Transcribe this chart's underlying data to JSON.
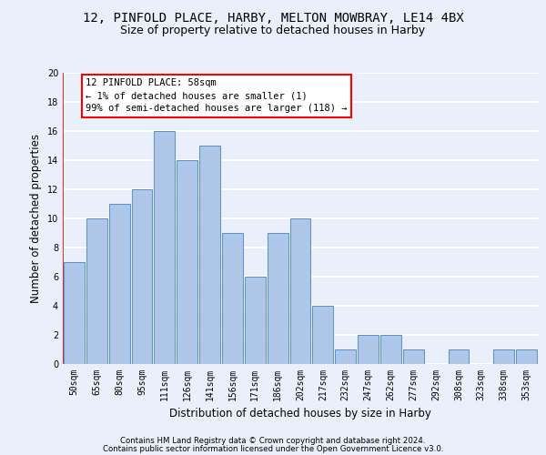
{
  "title_line1": "12, PINFOLD PLACE, HARBY, MELTON MOWBRAY, LE14 4BX",
  "title_line2": "Size of property relative to detached houses in Harby",
  "xlabel": "Distribution of detached houses by size in Harby",
  "ylabel": "Number of detached properties",
  "footnote1": "Contains HM Land Registry data © Crown copyright and database right 2024.",
  "footnote2": "Contains public sector information licensed under the Open Government Licence v3.0.",
  "bar_labels": [
    "50sqm",
    "65sqm",
    "80sqm",
    "95sqm",
    "111sqm",
    "126sqm",
    "141sqm",
    "156sqm",
    "171sqm",
    "186sqm",
    "202sqm",
    "217sqm",
    "232sqm",
    "247sqm",
    "262sqm",
    "277sqm",
    "292sqm",
    "308sqm",
    "323sqm",
    "338sqm",
    "353sqm"
  ],
  "bar_values": [
    7,
    10,
    11,
    12,
    16,
    14,
    15,
    9,
    6,
    9,
    10,
    4,
    1,
    2,
    2,
    1,
    0,
    1,
    0,
    1,
    1
  ],
  "bar_color": "#aec6e8",
  "bar_edge_color": "#5a8fc0",
  "annotation_line1": "12 PINFOLD PLACE: 58sqm",
  "annotation_line2": "← 1% of detached houses are smaller (1)",
  "annotation_line3": "99% of semi-detached houses are larger (118) →",
  "annotation_box_color": "white",
  "annotation_box_edge_color": "red",
  "ylim": [
    0,
    20
  ],
  "yticks": [
    0,
    2,
    4,
    6,
    8,
    10,
    12,
    14,
    16,
    18,
    20
  ],
  "bg_color": "#eaf0fb",
  "plot_bg_color": "#eaf0fb",
  "grid_color": "white",
  "title_fontsize": 10,
  "subtitle_fontsize": 9,
  "axis_label_fontsize": 8.5,
  "tick_fontsize": 7,
  "annot_fontsize": 7.5,
  "footnote_fontsize": 6.2
}
